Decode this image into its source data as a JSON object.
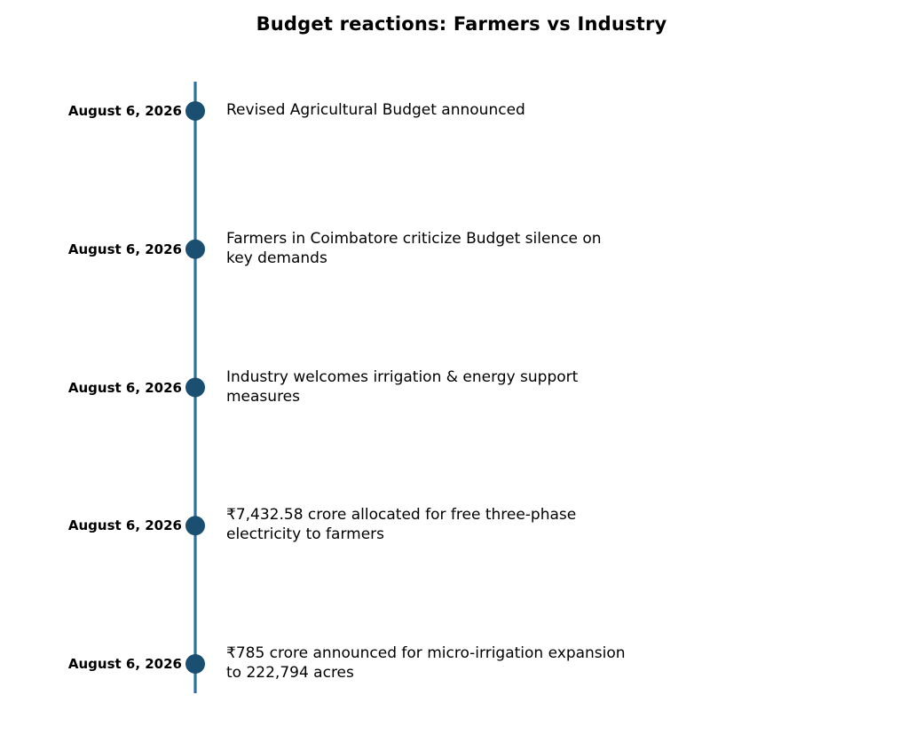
{
  "chart_data": {
    "type": "timeline",
    "title": "Budget reactions: Farmers vs Industry",
    "colors": {
      "axis": "#2e6f9e",
      "marker": "#1b4f72",
      "text": "#000000"
    },
    "events": [
      {
        "date": "August 6, 2026",
        "text": "Revised Agricultural Budget announced"
      },
      {
        "date": "August 6, 2026",
        "text": "Farmers in Coimbatore criticize Budget silence on\nkey demands"
      },
      {
        "date": "August 6, 2026",
        "text": "Industry welcomes irrigation & energy support\nmeasures"
      },
      {
        "date": "August 6, 2026",
        "text": "₹7,432.58 crore allocated for free three-phase\nelectricity to farmers"
      },
      {
        "date": "August 6, 2026",
        "text": "₹785 crore announced for micro-irrigation expansion\nto 222,794 acres"
      }
    ]
  }
}
